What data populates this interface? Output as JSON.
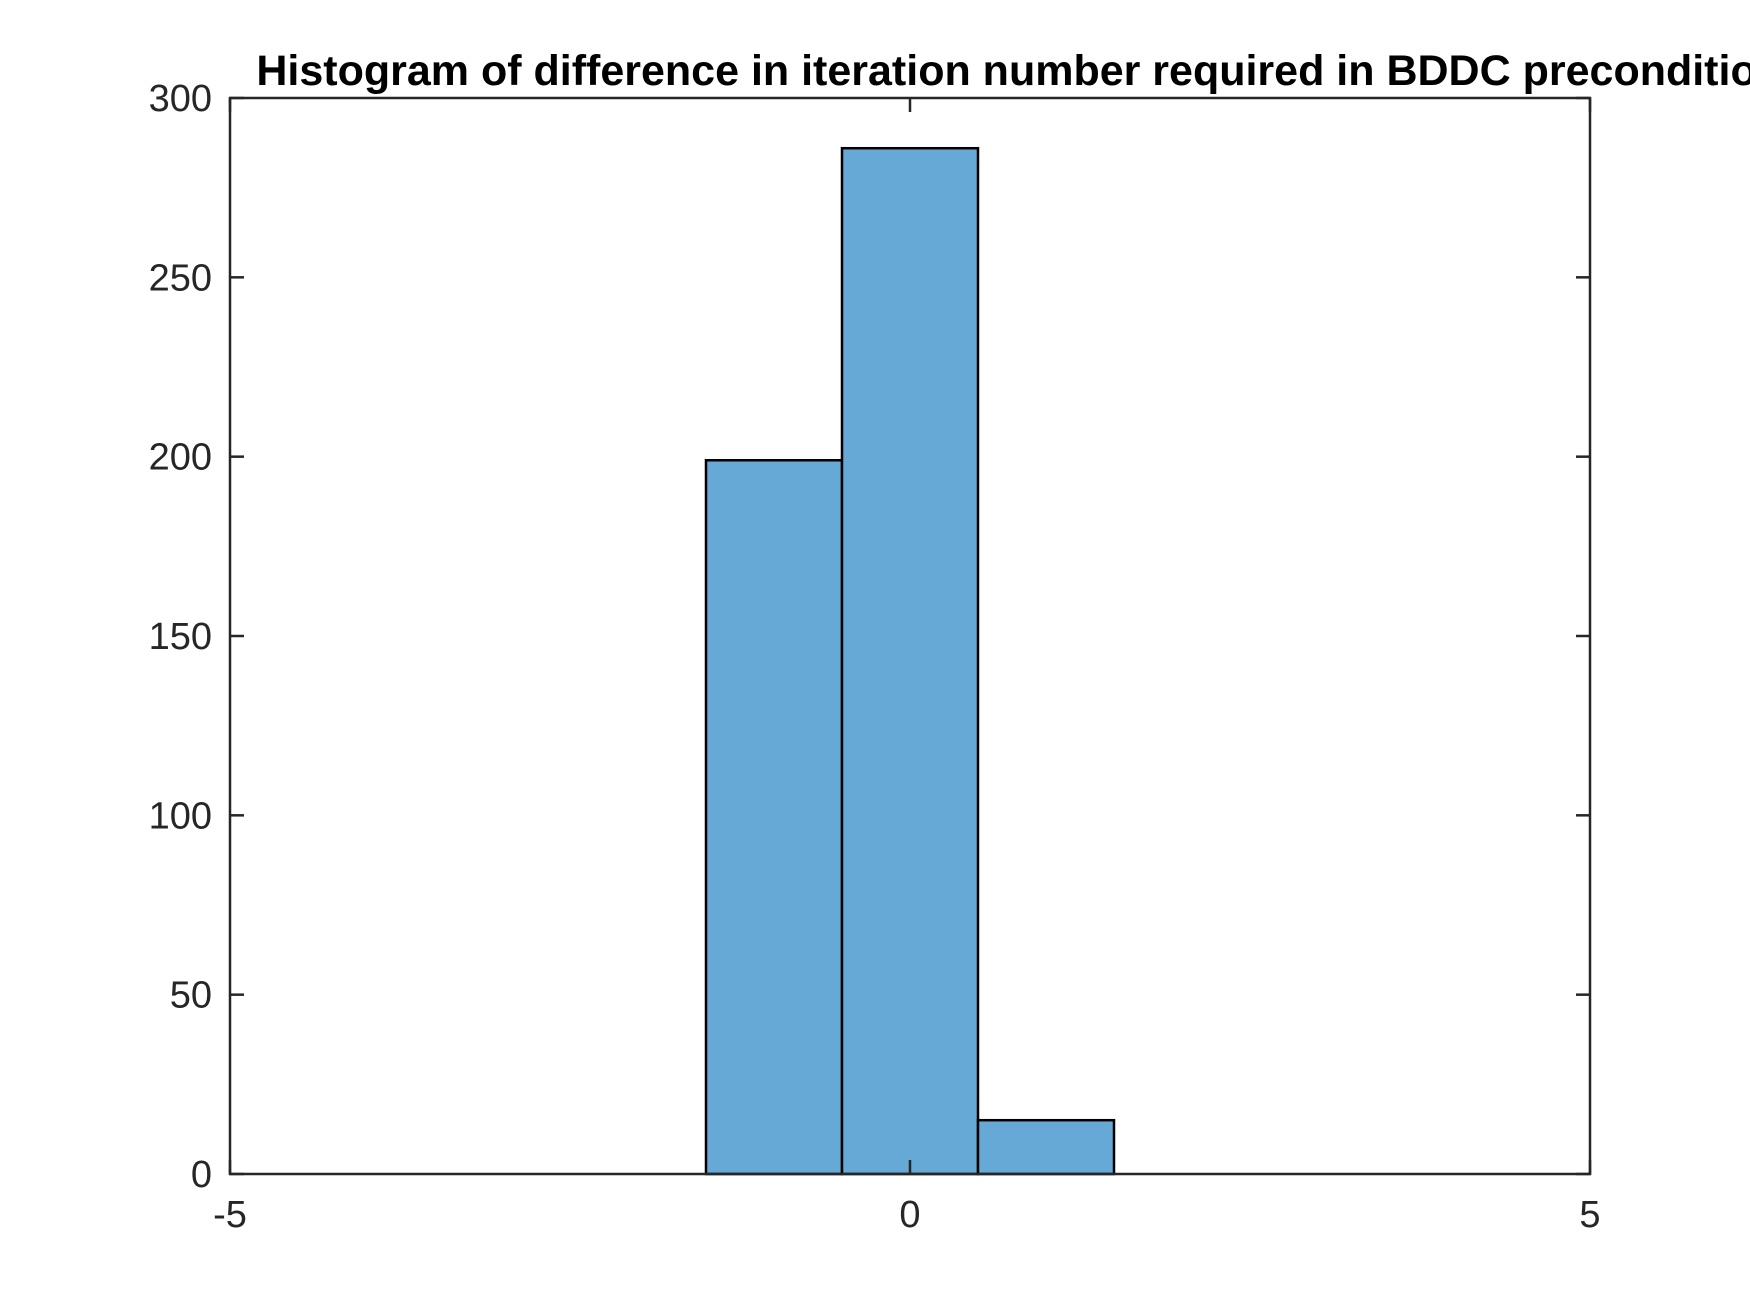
{
  "chart_data": {
    "type": "bar",
    "subtype": "histogram",
    "title": "Histogram of difference in iteration number required in BDDC preconditioner",
    "xlabel": "",
    "ylabel": "",
    "xlim": [
      -5,
      5
    ],
    "ylim": [
      0,
      300
    ],
    "xticks": [
      -5,
      0,
      5
    ],
    "yticks": [
      0,
      50,
      100,
      150,
      200,
      250,
      300
    ],
    "xtick_labels": [
      "-5",
      "0",
      "5"
    ],
    "ytick_labels": [
      "0",
      "50",
      "100",
      "150",
      "200",
      "250",
      "300"
    ],
    "bin_edges": [
      -1.5,
      -0.5,
      0.5,
      1.5
    ],
    "counts": [
      199,
      286,
      15
    ],
    "bar_color": "#66a9d6",
    "edge_color": "#000000",
    "grid": false,
    "box": true
  }
}
